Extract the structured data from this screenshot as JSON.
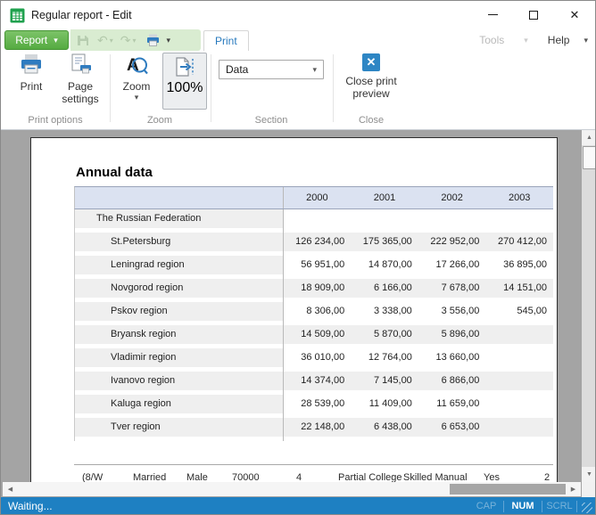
{
  "window": {
    "title": "Regular report - Edit",
    "close_glyph": "✕"
  },
  "menubar": {
    "report_button": "Report",
    "print_tab": "Print",
    "tools": "Tools",
    "help": "Help"
  },
  "toolbar": {
    "print_label": "Print",
    "page_settings_label": "Page settings",
    "zoom_label": "Zoom",
    "zoom_value": "100%",
    "section_value": "Data",
    "close_label": "Close print preview",
    "groups": {
      "print_options": "Print options",
      "zoom": "Zoom",
      "section": "Section",
      "close": "Close"
    }
  },
  "glyphs": {
    "caret": "▾",
    "undo": "↶",
    "redo": "↷",
    "up": "▲",
    "down": "▼",
    "left": "◀",
    "right": "▶"
  },
  "preview": {
    "report_title": "Annual data",
    "table": {
      "columns": [
        "2000",
        "2001",
        "2002",
        "2003"
      ],
      "rows": [
        {
          "label": "The Russian Federation",
          "indent": 1,
          "striped": false,
          "values": [
            "",
            "",
            "",
            ""
          ]
        },
        {
          "label": "St.Petersburg",
          "indent": 2,
          "striped": true,
          "values": [
            "126 234,00",
            "175 365,00",
            "222 952,00",
            "270 412,00"
          ]
        },
        {
          "label": "Leningrad region",
          "indent": 2,
          "striped": false,
          "values": [
            "56 951,00",
            "14 870,00",
            "17 266,00",
            "36 895,00"
          ]
        },
        {
          "label": "Novgorod region",
          "indent": 2,
          "striped": true,
          "values": [
            "18 909,00",
            "6 166,00",
            "7 678,00",
            "14 151,00"
          ]
        },
        {
          "label": "Pskov region",
          "indent": 2,
          "striped": false,
          "values": [
            "8 306,00",
            "3 338,00",
            "3 556,00",
            "545,00"
          ]
        },
        {
          "label": "Bryansk region",
          "indent": 2,
          "striped": true,
          "values": [
            "14 509,00",
            "5 870,00",
            "5 896,00",
            ""
          ]
        },
        {
          "label": "Vladimir region",
          "indent": 2,
          "striped": false,
          "values": [
            "36 010,00",
            "12 764,00",
            "13 660,00",
            ""
          ]
        },
        {
          "label": "Ivanovo region",
          "indent": 2,
          "striped": true,
          "values": [
            "14 374,00",
            "7 145,00",
            "6 866,00",
            ""
          ]
        },
        {
          "label": "Kaluga region",
          "indent": 2,
          "striped": false,
          "values": [
            "28 539,00",
            "11 409,00",
            "11 659,00",
            ""
          ]
        },
        {
          "label": "Tver region",
          "indent": 2,
          "striped": true,
          "values": [
            "22 148,00",
            "6 438,00",
            "6 653,00",
            ""
          ]
        }
      ]
    },
    "partial_row": {
      "tokens": [
        "(8/W",
        "Married",
        "Male",
        "70000",
        "4",
        "Partial College",
        "Skilled Manual",
        "Yes",
        "2"
      ]
    }
  },
  "statusbar": {
    "message": "Waiting...",
    "indicators": [
      {
        "label": "CAP",
        "active": false
      },
      {
        "label": "NUM",
        "active": true
      },
      {
        "label": "SCRL",
        "active": false
      }
    ]
  },
  "colors": {
    "accent_green": "#5aad49",
    "accent_blue": "#2779bd",
    "status_bar_blue": "#1e80c2",
    "table_header_fill": "#dbe2f1",
    "row_stripe": "#efefef",
    "preview_background": "#a4a4a4"
  }
}
